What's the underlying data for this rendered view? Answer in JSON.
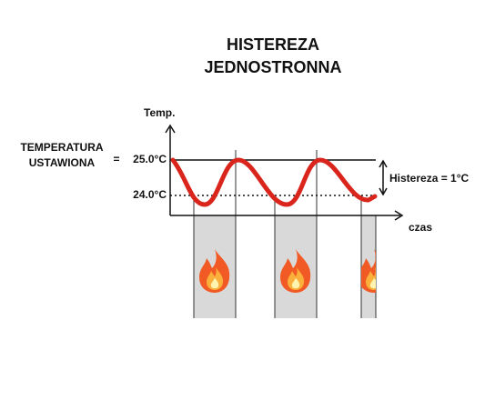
{
  "title": [
    "HISTEREZA",
    "JEDNOSTRONNA"
  ],
  "y_axis_label": "Temp.",
  "x_axis_label": "czas",
  "setpoint_label": [
    "TEMPERATURA",
    "USTAWIONA"
  ],
  "equals": "=",
  "upper_label": "25.0°C",
  "lower_label": "24.0°C",
  "hysteresis_label": "Histereza = 1°C"
}
